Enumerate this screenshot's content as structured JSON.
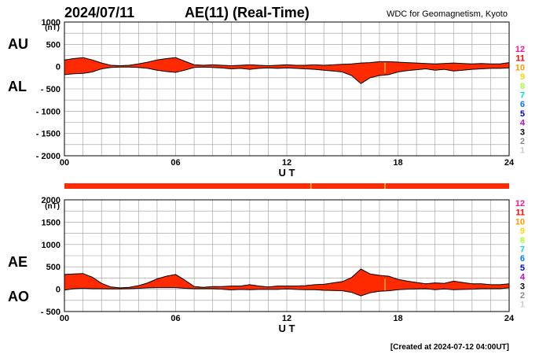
{
  "header": {
    "date": "2024/07/11",
    "title": "AE(11) (Real-Time)",
    "source": "WDC for Geomagnetism, Kyoto"
  },
  "footer": {
    "created": "[Created at 2024-07-12 04:00UT]"
  },
  "colors": {
    "fill": "#ff2a00",
    "outline": "#000000",
    "grid": "#999999",
    "bar": "#ff2a00",
    "bar_mark": "#ffcc33"
  },
  "levels": [
    {
      "label": "12",
      "color": "#ff1493"
    },
    {
      "label": "11",
      "color": "#ff0000"
    },
    {
      "label": "10",
      "color": "#ff9900"
    },
    {
      "label": "9",
      "color": "#ffd700"
    },
    {
      "label": "8",
      "color": "#aaff33"
    },
    {
      "label": "7",
      "color": "#00dddd"
    },
    {
      "label": "6",
      "color": "#0077ff"
    },
    {
      "label": "5",
      "color": "#0000cc"
    },
    {
      "label": "4",
      "color": "#cc00cc"
    },
    {
      "label": "3",
      "color": "#000000"
    },
    {
      "label": "2",
      "color": "#888888"
    },
    {
      "label": "1",
      "color": "#cccccc"
    }
  ],
  "chart_data": [
    {
      "type": "area",
      "unit": "(nT)",
      "xlabel": "U T",
      "xlim": [
        0,
        24
      ],
      "x_ticks": [
        "00",
        "06",
        "12",
        "18",
        "24"
      ],
      "ylim": [
        -2000,
        1000
      ],
      "y_ticks": [
        "1000",
        "500",
        "0",
        "- 500",
        "- 1000",
        "- 1500",
        "- 2000"
      ],
      "grid": true,
      "labels": {
        "upper": "AU",
        "lower": "AL"
      },
      "x": [
        0,
        0.5,
        1,
        1.5,
        2,
        2.5,
        3,
        3.5,
        4,
        4.5,
        5,
        5.5,
        6,
        6.5,
        7,
        7.5,
        8,
        8.5,
        9,
        9.5,
        10,
        10.5,
        11,
        11.5,
        12,
        12.5,
        13,
        13.5,
        14,
        14.5,
        15,
        15.5,
        16,
        16.5,
        17,
        17.5,
        18,
        18.5,
        19,
        19.5,
        20,
        20.5,
        21,
        21.5,
        22,
        22.5,
        23,
        23.5,
        24
      ],
      "series": [
        {
          "name": "AU",
          "values": [
            150,
            180,
            200,
            150,
            80,
            30,
            20,
            30,
            60,
            100,
            150,
            180,
            200,
            120,
            40,
            30,
            40,
            30,
            20,
            30,
            40,
            30,
            20,
            30,
            40,
            30,
            30,
            40,
            30,
            40,
            50,
            60,
            80,
            90,
            110,
            110,
            100,
            90,
            80,
            70,
            60,
            70,
            80,
            70,
            60,
            70,
            60,
            60,
            90
          ]
        },
        {
          "name": "AL",
          "values": [
            -180,
            -160,
            -150,
            -120,
            -50,
            -20,
            -10,
            -10,
            -20,
            -40,
            -80,
            -110,
            -130,
            -80,
            -20,
            -10,
            -20,
            -30,
            -50,
            -40,
            -60,
            -40,
            -30,
            -40,
            -30,
            -40,
            -50,
            -60,
            -80,
            -100,
            -120,
            -200,
            -380,
            -250,
            -200,
            -180,
            -120,
            -90,
            -70,
            -50,
            -80,
            -60,
            -100,
            -80,
            -60,
            -50,
            -40,
            -40,
            -30
          ]
        }
      ]
    },
    {
      "type": "area",
      "unit": "(nT)",
      "xlabel": "U T",
      "xlim": [
        0,
        24
      ],
      "x_ticks": [
        "00",
        "06",
        "12",
        "18",
        "24"
      ],
      "ylim": [
        -500,
        2000
      ],
      "y_ticks": [
        "2000",
        "1500",
        "1000",
        "500",
        "0",
        "- 500"
      ],
      "grid": true,
      "labels": {
        "upper": "AE",
        "lower": "AO"
      },
      "x": [
        0,
        0.5,
        1,
        1.5,
        2,
        2.5,
        3,
        3.5,
        4,
        4.5,
        5,
        5.5,
        6,
        6.5,
        7,
        7.5,
        8,
        8.5,
        9,
        9.5,
        10,
        10.5,
        11,
        11.5,
        12,
        12.5,
        13,
        13.5,
        14,
        14.5,
        15,
        15.5,
        16,
        16.5,
        17,
        17.5,
        18,
        18.5,
        19,
        19.5,
        20,
        20.5,
        21,
        21.5,
        22,
        22.5,
        23,
        23.5,
        24
      ],
      "series": [
        {
          "name": "AE",
          "values": [
            330,
            340,
            350,
            270,
            130,
            50,
            30,
            40,
            80,
            140,
            230,
            290,
            330,
            200,
            60,
            40,
            60,
            60,
            70,
            70,
            100,
            70,
            50,
            70,
            70,
            70,
            80,
            100,
            110,
            140,
            170,
            260,
            450,
            340,
            310,
            290,
            220,
            180,
            150,
            120,
            140,
            130,
            180,
            150,
            120,
            120,
            100,
            100,
            120
          ]
        },
        {
          "name": "AO",
          "values": [
            -20,
            10,
            20,
            10,
            10,
            5,
            5,
            10,
            20,
            30,
            35,
            35,
            35,
            20,
            10,
            10,
            10,
            0,
            -15,
            -5,
            -10,
            -5,
            -5,
            -5,
            5,
            -5,
            -10,
            -10,
            -25,
            -30,
            -35,
            -70,
            -150,
            -80,
            -45,
            -35,
            -10,
            0,
            5,
            10,
            -10,
            5,
            -10,
            -5,
            0,
            10,
            10,
            10,
            30
          ]
        }
      ]
    },
    {
      "type": "bar",
      "description": "activity level strip",
      "xlim": [
        0,
        24
      ],
      "x": [
        0,
        24
      ],
      "level": 11,
      "markers_ut": [
        13.3,
        17.3
      ]
    }
  ]
}
